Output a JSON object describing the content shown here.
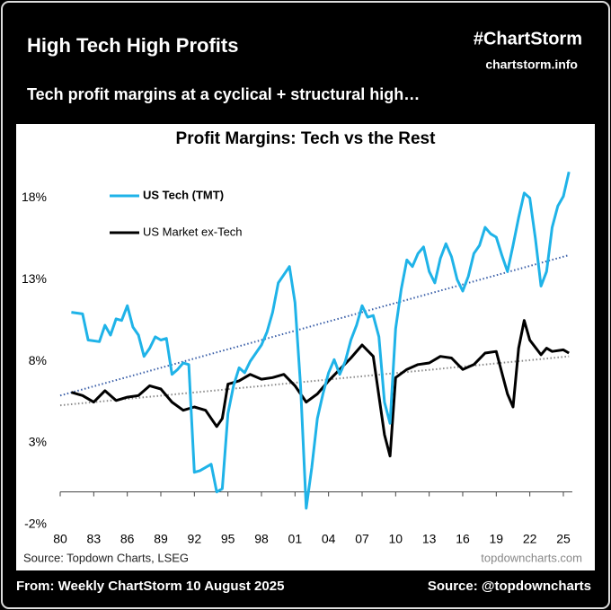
{
  "header": {
    "title": "High Tech High Profits",
    "brand": "#ChartStorm",
    "site": "chartstorm.info",
    "subtitle": "Tech profit margins at a cyclical + structural high…"
  },
  "footer": {
    "from": "From: Weekly ChartStorm 10 August 2025",
    "source": "Source: @topdowncharts"
  },
  "chart_data": {
    "type": "line",
    "title": "Profit Margins: Tech vs the Rest",
    "source": "Source: Topdown Charts, LSEG",
    "watermark": "topdowncharts.com",
    "legend": "top-left",
    "xlim": [
      1980,
      2025.8
    ],
    "ylim": [
      -2.5,
      20
    ],
    "xticks": [
      {
        "value": 1980,
        "label": "80"
      },
      {
        "value": 1983,
        "label": "83"
      },
      {
        "value": 1986,
        "label": "86"
      },
      {
        "value": 1989,
        "label": "89"
      },
      {
        "value": 1992,
        "label": "92"
      },
      {
        "value": 1995,
        "label": "95"
      },
      {
        "value": 1998,
        "label": "98"
      },
      {
        "value": 2001,
        "label": "01"
      },
      {
        "value": 2004,
        "label": "04"
      },
      {
        "value": 2007,
        "label": "07"
      },
      {
        "value": 2010,
        "label": "10"
      },
      {
        "value": 2013,
        "label": "13"
      },
      {
        "value": 2016,
        "label": "16"
      },
      {
        "value": 2019,
        "label": "19"
      },
      {
        "value": 2022,
        "label": "22"
      },
      {
        "value": 2025,
        "label": "25"
      }
    ],
    "yticks": [
      {
        "value": 18,
        "label": "18%"
      },
      {
        "value": 13,
        "label": "13%"
      },
      {
        "value": 8,
        "label": "8%"
      },
      {
        "value": 3,
        "label": "3%"
      },
      {
        "value": -2,
        "label": "-2%"
      }
    ],
    "series": [
      {
        "name": "US Tech (TMT)",
        "color": "#1fb3e8",
        "x": [
          1981,
          1982,
          1982.5,
          1983.5,
          1984,
          1984.5,
          1985,
          1985.5,
          1986,
          1986.5,
          1987,
          1987.5,
          1988,
          1988.5,
          1989,
          1989.5,
          1990,
          1990.5,
          1991,
          1991.5,
          1992,
          1992.5,
          1993,
          1993.5,
          1994,
          1994.5,
          1995,
          1995.5,
          1996,
          1996.5,
          1997,
          1997.5,
          1998,
          1998.5,
          1999,
          1999.5,
          2000,
          2000.5,
          2001,
          2001.5,
          2002,
          2002.5,
          2003,
          2003.5,
          2004,
          2004.5,
          2005,
          2005.5,
          2006,
          2006.5,
          2007,
          2007.5,
          2008,
          2008.5,
          2009,
          2009.5,
          2010,
          2010.5,
          2011,
          2011.5,
          2012,
          2012.5,
          2013,
          2013.5,
          2014,
          2014.5,
          2015,
          2015.5,
          2016,
          2016.5,
          2017,
          2017.5,
          2018,
          2018.5,
          2019,
          2019.5,
          2020,
          2020.5,
          2021,
          2021.5,
          2022,
          2022.5,
          2023,
          2023.5,
          2024,
          2024.5,
          2025,
          2025.5
        ],
        "values": [
          11.0,
          10.9,
          9.3,
          9.2,
          10.2,
          9.6,
          10.6,
          10.5,
          11.4,
          10.1,
          9.6,
          8.3,
          8.8,
          9.5,
          9.3,
          9.4,
          7.2,
          7.5,
          7.9,
          7.8,
          1.2,
          1.3,
          1.5,
          1.7,
          0.0,
          0.2,
          4.8,
          6.5,
          7.6,
          7.3,
          8.0,
          8.5,
          9.0,
          9.8,
          11.0,
          12.8,
          13.3,
          13.8,
          11.6,
          6.5,
          -1.0,
          1.5,
          4.5,
          6.0,
          7.3,
          8.1,
          7.2,
          8.0,
          9.3,
          10.2,
          11.4,
          10.7,
          10.8,
          9.5,
          5.5,
          4.2,
          10.0,
          12.4,
          14.2,
          13.8,
          14.6,
          15.0,
          13.5,
          12.8,
          14.3,
          15.2,
          14.4,
          13.0,
          12.3,
          13.2,
          14.6,
          15.1,
          16.2,
          15.8,
          15.6,
          14.5,
          13.5,
          15.1,
          16.8,
          18.3,
          18.0,
          15.5,
          12.6,
          13.5,
          16.2,
          17.5,
          18.1,
          19.6
        ]
      },
      {
        "name": "US Market ex-Tech",
        "color": "#000000",
        "x": [
          1981,
          1982,
          1983,
          1984,
          1985,
          1986,
          1987,
          1988,
          1989,
          1990,
          1991,
          1992,
          1993,
          1994,
          1994.5,
          1995,
          1996,
          1997,
          1998,
          1999,
          2000,
          2001,
          2002,
          2003,
          2004,
          2005,
          2006,
          2007,
          2008,
          2009,
          2009.5,
          2010,
          2011,
          2012,
          2013,
          2014,
          2015,
          2016,
          2017,
          2018,
          2019,
          2020,
          2020.5,
          2021,
          2021.5,
          2022,
          2023,
          2023.5,
          2024,
          2025,
          2025.5
        ],
        "values": [
          6.1,
          5.9,
          5.5,
          6.2,
          5.6,
          5.8,
          5.9,
          6.5,
          6.3,
          5.5,
          5.0,
          5.2,
          5.0,
          4.0,
          4.5,
          6.6,
          6.8,
          7.2,
          6.9,
          7.0,
          7.2,
          6.5,
          5.5,
          6.0,
          6.8,
          7.5,
          8.2,
          9.0,
          8.3,
          3.5,
          2.2,
          7.0,
          7.5,
          7.8,
          7.9,
          8.3,
          8.2,
          7.5,
          7.8,
          8.5,
          8.6,
          6.0,
          5.2,
          8.8,
          10.5,
          9.3,
          8.4,
          8.8,
          8.6,
          8.7,
          8.5
        ]
      }
    ],
    "trendlines": [
      {
        "color": "#3a5fa8",
        "x": [
          1980,
          2025.5
        ],
        "values": [
          5.9,
          14.5
        ]
      },
      {
        "color": "#8a8a8a",
        "x": [
          1980,
          2025.5
        ],
        "values": [
          5.3,
          8.3
        ]
      }
    ]
  }
}
